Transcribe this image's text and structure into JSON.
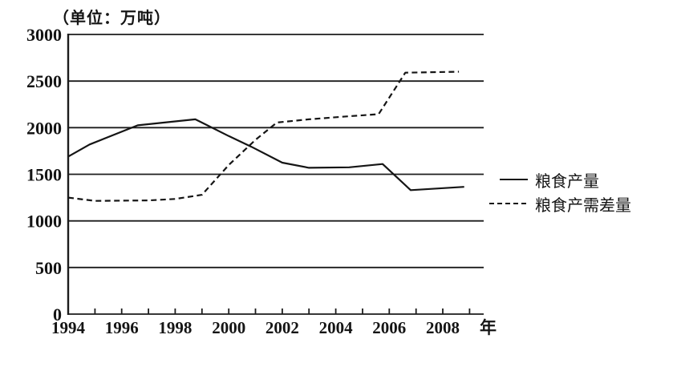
{
  "chart_data": {
    "type": "line",
    "title": "（单位：万吨）",
    "unit": "万吨",
    "xlabel": "年",
    "ylabel": "",
    "xlim": [
      1994,
      2009.5
    ],
    "ylim": [
      0,
      3000
    ],
    "grid": true,
    "legend_position": "right",
    "yticks": [
      0,
      500,
      1000,
      1500,
      2000,
      2500,
      3000
    ],
    "xtick_labels": [
      "1994",
      "1996",
      "1998",
      "2000",
      "2002",
      "2004",
      "2006",
      "2008"
    ],
    "xtick_label_years": [
      1994,
      1996,
      1998,
      2000,
      2002,
      2004,
      2006,
      2008
    ],
    "minor_xtick_years": [
      1995,
      1996,
      1997,
      1998,
      1999,
      2000,
      2001,
      2002,
      2003,
      2004,
      2005,
      2006,
      2007,
      2008,
      2009
    ],
    "series": [
      {
        "name": "粮食产量",
        "style": "solid",
        "points": [
          [
            1994.0,
            1690
          ],
          [
            1994.8,
            1820
          ],
          [
            1996.6,
            2025
          ],
          [
            1998.75,
            2090
          ],
          [
            2000.0,
            1910
          ],
          [
            2000.85,
            1795
          ],
          [
            2002.0,
            1625
          ],
          [
            2003.0,
            1570
          ],
          [
            2004.5,
            1575
          ],
          [
            2005.75,
            1610
          ],
          [
            2006.8,
            1330
          ],
          [
            2008.8,
            1365
          ]
        ]
      },
      {
        "name": "粮食产需差量",
        "style": "dashed",
        "points": [
          [
            1994.0,
            1250
          ],
          [
            1995.0,
            1215
          ],
          [
            1997.0,
            1220
          ],
          [
            1998.0,
            1235
          ],
          [
            1999.0,
            1280
          ],
          [
            2000.0,
            1600
          ],
          [
            2001.0,
            1870
          ],
          [
            2001.8,
            2055
          ],
          [
            2003.0,
            2090
          ],
          [
            2004.6,
            2125
          ],
          [
            2005.6,
            2145
          ],
          [
            2006.6,
            2590
          ],
          [
            2008.6,
            2600
          ]
        ]
      }
    ],
    "colors": {
      "line": "#151515",
      "background": "#ffffff"
    }
  }
}
